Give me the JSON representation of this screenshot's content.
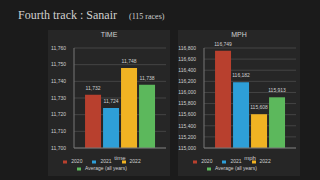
{
  "header": {
    "title": "Fourth track : Sanair",
    "note": "(115 races)"
  },
  "chart_data": [
    {
      "type": "bar",
      "title": "TIME",
      "categories": [
        "time"
      ],
      "series": [
        {
          "name": "2020",
          "color": "#b8402e",
          "values": [
            11732
          ],
          "value_labels": [
            "11,732"
          ]
        },
        {
          "name": "2021",
          "color": "#2e9fd8",
          "values": [
            11724
          ],
          "value_labels": [
            "11,724"
          ]
        },
        {
          "name": "2022",
          "color": "#f0b323",
          "values": [
            11748
          ],
          "value_labels": [
            "11,748"
          ]
        },
        {
          "name": "Average (all years)",
          "color": "#5cb85c",
          "values": [
            11738
          ],
          "value_labels": [
            "11,738"
          ]
        }
      ],
      "ylim": [
        11700,
        11760
      ],
      "yticks": [
        {
          "value": 11700,
          "label": "11,700"
        },
        {
          "value": 11710,
          "label": "11,710"
        },
        {
          "value": 11720,
          "label": "11,720"
        },
        {
          "value": 11730,
          "label": "11,730"
        },
        {
          "value": 11740,
          "label": "11,740"
        },
        {
          "value": 11750,
          "label": "11,750"
        },
        {
          "value": 11760,
          "label": "11,760"
        }
      ],
      "grid": true,
      "legend": "bottom",
      "data_labels": true
    },
    {
      "type": "bar",
      "title": "MPH",
      "categories": [
        "mph"
      ],
      "series": [
        {
          "name": "2020",
          "color": "#b8402e",
          "values": [
            116749
          ],
          "value_labels": [
            "116,749"
          ]
        },
        {
          "name": "2021",
          "color": "#2e9fd8",
          "values": [
            116182
          ],
          "value_labels": [
            "116,182"
          ]
        },
        {
          "name": "2022",
          "color": "#f0b323",
          "values": [
            115608
          ],
          "value_labels": [
            "115,608"
          ]
        },
        {
          "name": "Average (all years)",
          "color": "#5cb85c",
          "values": [
            115913
          ],
          "value_labels": [
            "115,913"
          ]
        }
      ],
      "ylim": [
        115000,
        116800
      ],
      "yticks": [
        {
          "value": 115000,
          "label": "115,000"
        },
        {
          "value": 115200,
          "label": "115,200"
        },
        {
          "value": 115400,
          "label": "115,400"
        },
        {
          "value": 115600,
          "label": "115,600"
        },
        {
          "value": 115800,
          "label": "115,800"
        },
        {
          "value": 116000,
          "label": "116,000"
        },
        {
          "value": 116200,
          "label": "116,200"
        },
        {
          "value": 116400,
          "label": "116,400"
        },
        {
          "value": 116600,
          "label": "116,600"
        },
        {
          "value": 116800,
          "label": "116,800"
        }
      ],
      "grid": true,
      "legend": "bottom",
      "data_labels": true
    }
  ]
}
